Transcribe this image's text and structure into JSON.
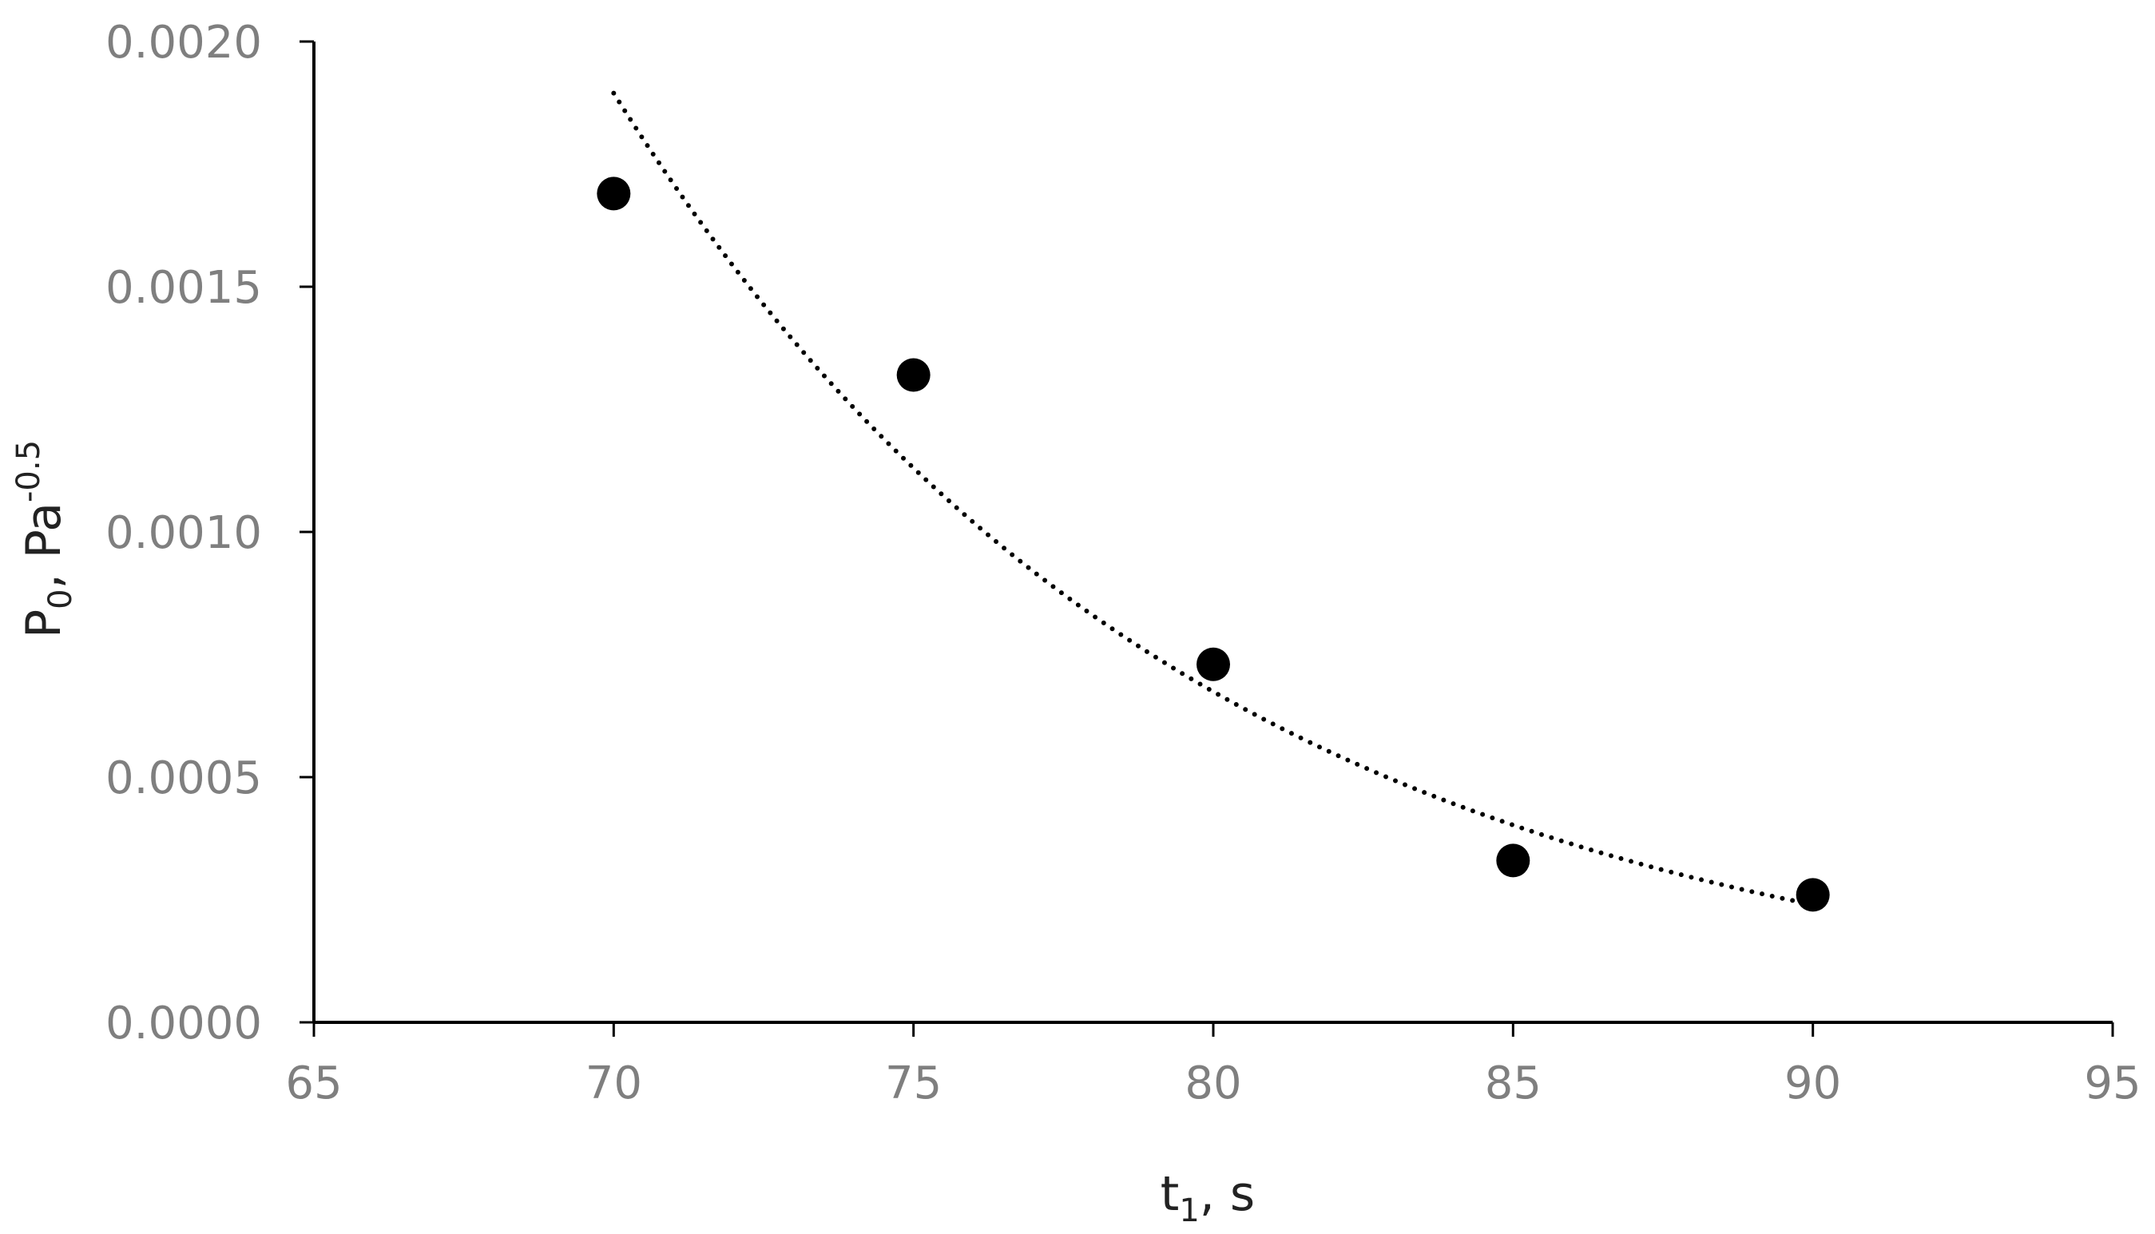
{
  "chart_data": {
    "type": "scatter",
    "title": "",
    "xlabel": {
      "base": "t",
      "sub": "1",
      "rest": ", s"
    },
    "ylabel": {
      "base": "P",
      "sub": "0",
      "mid": ", Pa",
      "sup": "-0.5"
    },
    "xlim": [
      65,
      95
    ],
    "ylim": [
      0,
      0.002
    ],
    "xticks": [
      65,
      70,
      75,
      80,
      85,
      90,
      95
    ],
    "yticks": [
      "0.0000",
      "0.0005",
      "0.0010",
      "0.0015",
      "0.0020"
    ],
    "grid": false,
    "legend": "none",
    "series": [
      {
        "points": [
          {
            "x": 70,
            "y": 0.00169
          },
          {
            "x": 75,
            "y": 0.00132
          },
          {
            "x": 80,
            "y": 0.00073
          },
          {
            "x": 85,
            "y": 0.00033
          },
          {
            "x": 90,
            "y": 0.00026
          }
        ],
        "marker_color": "#000000"
      }
    ],
    "trendline": {
      "style": "dotted",
      "kind": "exponential",
      "x_range": [
        70,
        90
      ],
      "points": [
        {
          "x": 70,
          "y": 0.00189
        },
        {
          "x": 75,
          "y": 0.00113
        },
        {
          "x": 80,
          "y": 0.00068
        },
        {
          "x": 85,
          "y": 0.0004
        },
        {
          "x": 90,
          "y": 0.00024
        }
      ],
      "color": "#000000"
    },
    "axis_color": "#000000",
    "tick_label_color": "#7f7f7f"
  }
}
